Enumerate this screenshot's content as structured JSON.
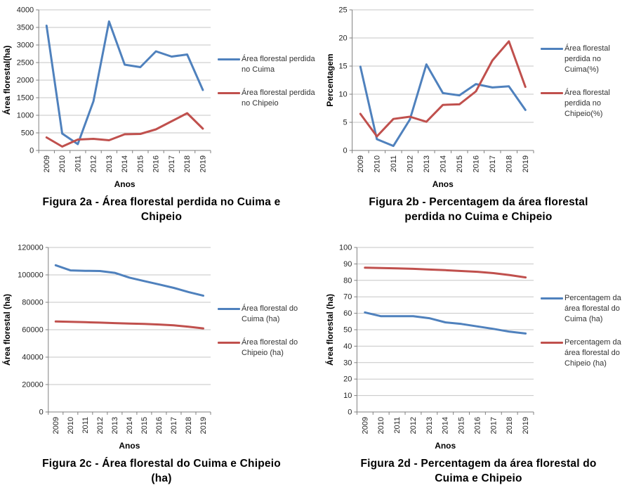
{
  "page": {
    "background": "#ffffff"
  },
  "colors": {
    "cuima_blue": "#4F81BD",
    "chipeio_red": "#C0504D",
    "gridline": "#C6C6C6",
    "axis": "#808080",
    "tick_text": "#262626"
  },
  "figures": [
    {
      "caption": "Figura 2a - Área florestal perdida no Cuima e Chipeio"
    },
    {
      "caption": "Figura 2b -  Percentagem da área florestal perdida no Cuima e Chipeio"
    },
    {
      "caption": "Figura 2c - Área florestal do Cuima e Chipeio (ha)"
    },
    {
      "caption": "Figura 2d -  Percentagem da área florestal do Cuima e Chipeio"
    }
  ],
  "chart_data": [
    {
      "type": "line",
      "figure": "2a",
      "title": "Figura 2a - Área florestal perdida no Cuima e Chipeio",
      "xlabel": "Anos",
      "ylabel": "Área florestal(ha)",
      "ylim": [
        0,
        4000
      ],
      "ytick_step": 500,
      "grid": true,
      "legend_position": "right",
      "categories": [
        "2009",
        "2010",
        "2011",
        "2012",
        "2013",
        "2014",
        "2015",
        "2016",
        "2017",
        "2018",
        "2019"
      ],
      "series": [
        {
          "name": "Área florestal perdida no Cuima",
          "color": "#4F81BD",
          "values": [
            3550,
            480,
            180,
            1400,
            3670,
            2440,
            2370,
            2820,
            2670,
            2730,
            1720
          ]
        },
        {
          "name": "Área florestal perdida no Chipeio",
          "color": "#C0504D",
          "values": [
            370,
            110,
            310,
            330,
            290,
            460,
            470,
            600,
            830,
            1060,
            620
          ]
        }
      ]
    },
    {
      "type": "line",
      "figure": "2b",
      "title": "Figura 2b -  Percentagem da área florestal perdida no Cuima e Chipeio",
      "xlabel": "Anos",
      "ylabel": "Percentagem",
      "ylim": [
        0,
        25
      ],
      "ytick_step": 5,
      "grid": true,
      "legend_position": "right",
      "categories": [
        "2009",
        "2010",
        "2011",
        "2012",
        "2013",
        "2014",
        "2015",
        "2016",
        "2017",
        "2018",
        "2019"
      ],
      "series": [
        {
          "name": "Área florestal perdida no Cuima(%)",
          "color": "#4F81BD",
          "values": [
            14.9,
            2.0,
            0.8,
            5.5,
            15.3,
            10.2,
            9.8,
            11.8,
            11.2,
            11.4,
            7.2
          ]
        },
        {
          "name": "Área florestal perdida no Chipeio(%)",
          "color": "#C0504D",
          "values": [
            6.5,
            2.5,
            5.6,
            6.0,
            5.1,
            8.1,
            8.2,
            10.5,
            16.0,
            19.4,
            11.3
          ]
        }
      ]
    },
    {
      "type": "line",
      "figure": "2c",
      "title": "Figura 2c - Área florestal do Cuima e Chipeio (ha)",
      "xlabel": "Anos",
      "ylabel": "Área florestal (ha)",
      "ylim": [
        0,
        120000
      ],
      "ytick_step": 20000,
      "grid": true,
      "legend_position": "right",
      "categories": [
        "2009",
        "2010",
        "2011",
        "2012",
        "2013",
        "2014",
        "2015",
        "2016",
        "2017",
        "2018",
        "2019"
      ],
      "series": [
        {
          "name": "Área florestal do Cuima (ha)",
          "color": "#4F81BD",
          "values": [
            107000,
            103300,
            103000,
            102800,
            101500,
            98000,
            95500,
            93000,
            90500,
            87500,
            84800
          ]
        },
        {
          "name": "Área florestal do Chipeio (ha)",
          "color": "#C0504D",
          "values": [
            66000,
            65800,
            65500,
            65200,
            64800,
            64500,
            64200,
            63800,
            63200,
            62200,
            61000
          ]
        }
      ]
    },
    {
      "type": "line",
      "figure": "2d",
      "title": "Figura 2d -  Percentagem da área florestal do Cuima e Chipeio",
      "xlabel": "Anos",
      "ylabel": "Área florestal (ha)",
      "ylim": [
        0,
        100
      ],
      "ytick_step": 10,
      "grid": true,
      "legend_position": "right",
      "categories": [
        "2009",
        "2010",
        "2011",
        "2012",
        "2013",
        "2014",
        "2015",
        "2016",
        "2017",
        "2018",
        "2019"
      ],
      "series": [
        {
          "name": "Percentagem da área florestal do Cuima (ha)",
          "color": "#4F81BD",
          "values": [
            60.5,
            58.2,
            58.2,
            58.2,
            57.0,
            54.5,
            53.5,
            52.0,
            50.5,
            48.8,
            47.7
          ]
        },
        {
          "name": "Percentagem da área florestal do Chipeio (ha)",
          "color": "#C0504D",
          "values": [
            87.7,
            87.5,
            87.3,
            87.0,
            86.6,
            86.2,
            85.7,
            85.2,
            84.4,
            83.2,
            81.8
          ]
        }
      ]
    }
  ]
}
